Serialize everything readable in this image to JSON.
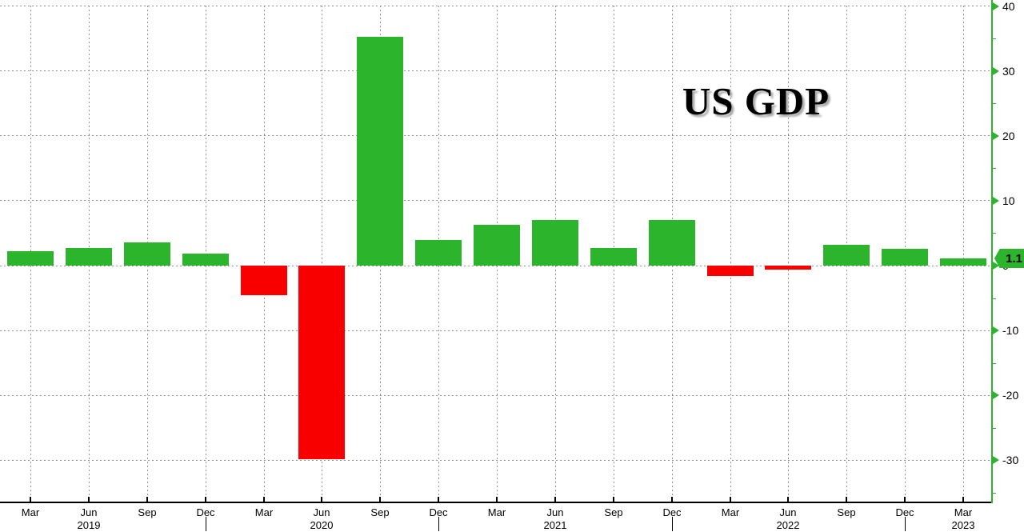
{
  "title": {
    "text": "US GDP"
  },
  "value_tag": {
    "label": "1.1"
  },
  "colors": {
    "positive_bar": "#2db42d",
    "negative_bar": "#f80000",
    "axis_green": "#2db42d",
    "grid_gray": "#909090",
    "axis_black": "#000000"
  },
  "chart_data": {
    "type": "bar",
    "title": "US GDP",
    "ylabel": "",
    "xlabel": "",
    "grid": true,
    "ylim": [
      -36.5,
      40.5
    ],
    "yticks_major": [
      40,
      30,
      20,
      10,
      0,
      -10,
      -20,
      -30
    ],
    "yticks_minor": [
      35,
      25,
      15,
      5,
      -5,
      -15,
      -25,
      -35
    ],
    "categories": [
      "Mar 2019",
      "Jun 2019",
      "Sep 2019",
      "Dec 2019",
      "Mar 2020",
      "Jun 2020",
      "Sep 2020",
      "Dec 2020",
      "Mar 2021",
      "Jun 2021",
      "Sep 2021",
      "Dec 2021",
      "Mar 2022",
      "Jun 2022",
      "Sep 2022",
      "Dec 2022",
      "Mar 2023"
    ],
    "month_labels": [
      "Mar",
      "Jun",
      "Sep",
      "Dec",
      "Mar",
      "Jun",
      "Sep",
      "Dec",
      "Mar",
      "Jun",
      "Sep",
      "Dec",
      "Mar",
      "Jun",
      "Sep",
      "Dec",
      "Mar"
    ],
    "year_labels": [
      {
        "text": "2019",
        "at_index": 1
      },
      {
        "text": "2020",
        "at_index": 5
      },
      {
        "text": "2021",
        "at_index": 9
      },
      {
        "text": "2022",
        "at_index": 13
      },
      {
        "text": "2023",
        "at_index": 16
      }
    ],
    "year_separators_at_index": [
      3,
      7,
      11,
      15
    ],
    "values": [
      2.2,
      2.7,
      3.6,
      1.8,
      -4.6,
      -29.9,
      35.3,
      3.9,
      6.3,
      7.0,
      2.7,
      7.0,
      -1.6,
      -0.6,
      3.2,
      2.6,
      1.1
    ],
    "last_value_label": "1.1",
    "legend": null
  }
}
